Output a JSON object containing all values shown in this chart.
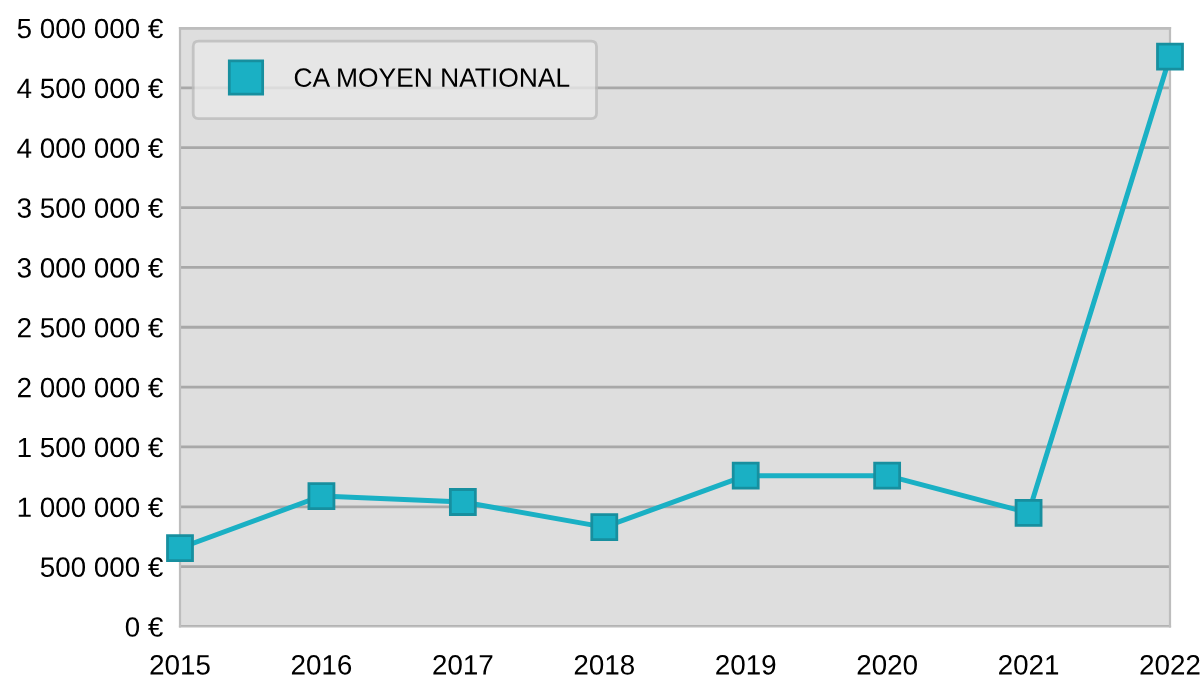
{
  "chart_data": {
    "type": "line",
    "x": [
      2015,
      2016,
      2017,
      2018,
      2019,
      2020,
      2021,
      2022
    ],
    "series": [
      {
        "name": "CA MOYEN NATIONAL",
        "color": "#1ab0c4",
        "values": [
          655000,
          1090000,
          1040000,
          830000,
          1260000,
          1260000,
          950000,
          4760000
        ]
      }
    ],
    "xlim": [
      2015,
      2022
    ],
    "xticks": [
      2015,
      2016,
      2017,
      2018,
      2019,
      2020,
      2021,
      2022
    ],
    "ylim": [
      0,
      5000000
    ],
    "yticks": [
      {
        "value": 0,
        "label": "0 €"
      },
      {
        "value": 500000,
        "label": "500 000 €"
      },
      {
        "value": 1000000,
        "label": "1 000 000 €"
      },
      {
        "value": 1500000,
        "label": "1 500 000 €"
      },
      {
        "value": 2000000,
        "label": "2 000 000 €"
      },
      {
        "value": 2500000,
        "label": "2 500 000 €"
      },
      {
        "value": 3000000,
        "label": "3 000 000 €"
      },
      {
        "value": 3500000,
        "label": "3 500 000 €"
      },
      {
        "value": 4000000,
        "label": "4 000 000 €"
      },
      {
        "value": 4500000,
        "label": "4 500 000 €"
      },
      {
        "value": 5000000,
        "label": "5 000 000 €"
      }
    ],
    "grid": "y",
    "legend": "top left",
    "marker": "square",
    "line_style": "solid"
  }
}
